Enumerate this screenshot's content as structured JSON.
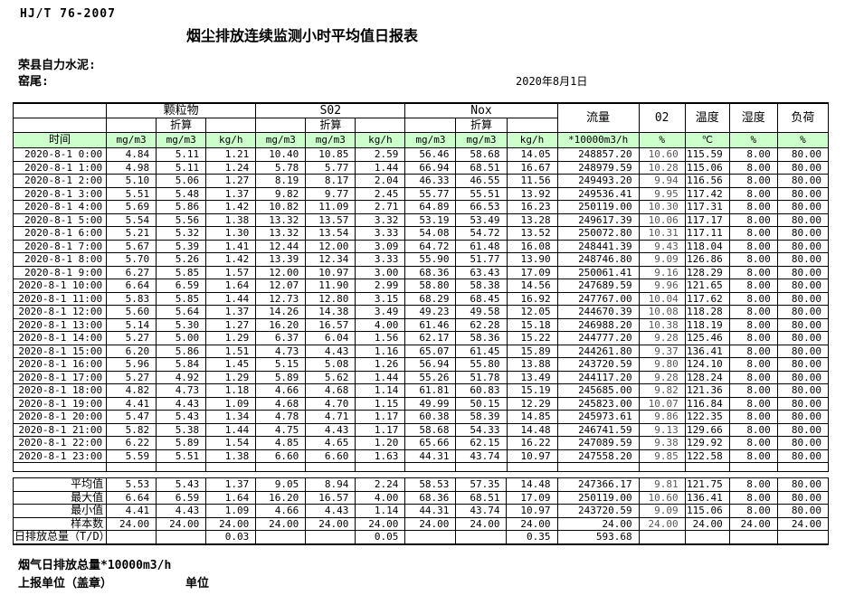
{
  "page": {
    "doc_code": "HJ/T  76-2007",
    "title": "烟尘排放连续监测小时平均值日报表",
    "company": "荣县自力水泥:",
    "station": "窑尾:",
    "date": "2020年8月1日"
  },
  "colors": {
    "header_green": "#ccffcc",
    "border": "#000000"
  },
  "table": {
    "time_header": "时间",
    "zhesuan": "折算",
    "groups": {
      "pm": "颗粒物",
      "so2": "S02",
      "nox": "Nox"
    },
    "single_headers": {
      "flow": "流量",
      "o2": "02",
      "temp": "温度",
      "humidity": "湿度",
      "load": "负荷"
    },
    "units": {
      "mgm3": "mg/m3",
      "kgh": "kg/h",
      "flow": "*10000m3/h",
      "percent": "%",
      "celsius": "℃"
    },
    "column_keys": [
      "pm-mgm3",
      "pm-converted-mgm3",
      "pm-kgh",
      "so2-mgm3",
      "so2-converted-mgm3",
      "so2-kgh",
      "nox-mgm3",
      "nox-converted-mgm3",
      "nox-kgh",
      "flow",
      "o2",
      "temp",
      "humidity",
      "load"
    ],
    "rows": [
      [
        "2020-8-1 0:00",
        "4.84",
        "5.11",
        "1.21",
        "10.40",
        "10.85",
        "2.59",
        "56.46",
        "58.68",
        "14.05",
        "248857.20",
        "10.60",
        "115.59",
        "8.00",
        "80.00"
      ],
      [
        "2020-8-1 1:00",
        "4.98",
        "5.11",
        "1.24",
        "5.78",
        "5.77",
        "1.44",
        "66.94",
        "68.51",
        "16.67",
        "248979.59",
        "10.28",
        "115.06",
        "8.00",
        "80.00"
      ],
      [
        "2020-8-1 2:00",
        "5.10",
        "5.06",
        "1.27",
        "8.19",
        "8.17",
        "2.04",
        "46.33",
        "46.55",
        "11.56",
        "249493.20",
        "9.94",
        "116.56",
        "8.00",
        "80.00"
      ],
      [
        "2020-8-1 3:00",
        "5.51",
        "5.48",
        "1.37",
        "9.82",
        "9.77",
        "2.45",
        "55.77",
        "55.51",
        "13.92",
        "249536.41",
        "9.95",
        "117.42",
        "8.00",
        "80.00"
      ],
      [
        "2020-8-1 4:00",
        "5.69",
        "5.86",
        "1.42",
        "10.82",
        "11.09",
        "2.71",
        "64.89",
        "66.53",
        "16.23",
        "250119.00",
        "10.30",
        "117.31",
        "8.00",
        "80.00"
      ],
      [
        "2020-8-1 5:00",
        "5.54",
        "5.56",
        "1.38",
        "13.32",
        "13.57",
        "3.32",
        "53.19",
        "53.49",
        "13.28",
        "249617.39",
        "10.06",
        "117.17",
        "8.00",
        "80.00"
      ],
      [
        "2020-8-1 6:00",
        "5.21",
        "5.32",
        "1.30",
        "13.32",
        "13.54",
        "3.33",
        "54.08",
        "54.72",
        "13.52",
        "250072.80",
        "10.31",
        "117.11",
        "8.00",
        "80.00"
      ],
      [
        "2020-8-1 7:00",
        "5.67",
        "5.39",
        "1.41",
        "12.44",
        "12.00",
        "3.09",
        "64.72",
        "61.48",
        "16.08",
        "248441.39",
        "9.43",
        "118.04",
        "8.00",
        "80.00"
      ],
      [
        "2020-8-1 8:00",
        "5.70",
        "5.26",
        "1.42",
        "13.39",
        "12.34",
        "3.33",
        "55.90",
        "51.77",
        "13.90",
        "248746.80",
        "9.09",
        "126.86",
        "8.00",
        "80.00"
      ],
      [
        "2020-8-1 9:00",
        "6.27",
        "5.85",
        "1.57",
        "12.00",
        "10.97",
        "3.00",
        "68.36",
        "63.43",
        "17.09",
        "250061.41",
        "9.16",
        "128.29",
        "8.00",
        "80.00"
      ],
      [
        "2020-8-1 10:00",
        "6.64",
        "6.59",
        "1.64",
        "12.07",
        "11.90",
        "2.99",
        "58.80",
        "58.38",
        "14.56",
        "247689.59",
        "9.96",
        "121.65",
        "8.00",
        "80.00"
      ],
      [
        "2020-8-1 11:00",
        "5.83",
        "5.85",
        "1.44",
        "12.73",
        "12.80",
        "3.15",
        "68.29",
        "68.45",
        "16.92",
        "247767.00",
        "10.04",
        "117.62",
        "8.00",
        "80.00"
      ],
      [
        "2020-8-1 12:00",
        "5.60",
        "5.64",
        "1.37",
        "14.26",
        "14.38",
        "3.49",
        "49.23",
        "49.58",
        "12.05",
        "244670.39",
        "10.08",
        "118.28",
        "8.00",
        "80.00"
      ],
      [
        "2020-8-1 13:00",
        "5.14",
        "5.30",
        "1.27",
        "16.20",
        "16.57",
        "4.00",
        "61.46",
        "62.28",
        "15.18",
        "246988.20",
        "10.38",
        "118.19",
        "8.00",
        "80.00"
      ],
      [
        "2020-8-1 14:00",
        "5.27",
        "5.00",
        "1.29",
        "6.37",
        "6.04",
        "1.56",
        "62.17",
        "58.36",
        "15.22",
        "244777.20",
        "9.28",
        "125.46",
        "8.00",
        "80.00"
      ],
      [
        "2020-8-1 15:00",
        "6.20",
        "5.86",
        "1.51",
        "4.73",
        "4.43",
        "1.16",
        "65.07",
        "61.45",
        "15.89",
        "244261.80",
        "9.37",
        "136.41",
        "8.00",
        "80.00"
      ],
      [
        "2020-8-1 16:00",
        "5.96",
        "5.84",
        "1.45",
        "5.15",
        "5.08",
        "1.26",
        "56.94",
        "55.80",
        "13.88",
        "243720.59",
        "9.80",
        "124.10",
        "8.00",
        "80.00"
      ],
      [
        "2020-8-1 17:00",
        "5.27",
        "4.92",
        "1.29",
        "5.89",
        "5.62",
        "1.44",
        "55.26",
        "51.78",
        "13.49",
        "244117.20",
        "9.28",
        "128.24",
        "8.00",
        "80.00"
      ],
      [
        "2020-8-1 18:00",
        "4.82",
        "4.73",
        "1.18",
        "4.66",
        "4.68",
        "1.14",
        "61.81",
        "60.83",
        "15.19",
        "245685.00",
        "9.82",
        "121.36",
        "8.00",
        "80.00"
      ],
      [
        "2020-8-1 19:00",
        "4.41",
        "4.43",
        "1.09",
        "4.68",
        "4.70",
        "1.15",
        "49.99",
        "50.15",
        "12.29",
        "245823.00",
        "10.07",
        "116.84",
        "8.00",
        "80.00"
      ],
      [
        "2020-8-1 20:00",
        "5.47",
        "5.43",
        "1.34",
        "4.78",
        "4.71",
        "1.17",
        "60.38",
        "58.39",
        "14.85",
        "245973.61",
        "9.86",
        "122.35",
        "8.00",
        "80.00"
      ],
      [
        "2020-8-1 21:00",
        "5.82",
        "5.38",
        "1.44",
        "4.75",
        "4.43",
        "1.17",
        "58.68",
        "54.33",
        "14.48",
        "246741.59",
        "9.13",
        "129.66",
        "8.00",
        "80.00"
      ],
      [
        "2020-8-1 22:00",
        "6.22",
        "5.89",
        "1.54",
        "4.85",
        "4.65",
        "1.20",
        "65.66",
        "62.15",
        "16.22",
        "247089.59",
        "9.38",
        "129.92",
        "8.00",
        "80.00"
      ],
      [
        "2020-8-1 23:00",
        "5.59",
        "5.51",
        "1.38",
        "6.60",
        "6.60",
        "1.63",
        "44.31",
        "43.74",
        "10.97",
        "247558.20",
        "9.85",
        "122.58",
        "8.00",
        "80.00"
      ]
    ],
    "summary": [
      {
        "label": "平均值",
        "align": "right",
        "values": [
          "5.53",
          "5.43",
          "1.37",
          "9.05",
          "8.94",
          "2.24",
          "58.53",
          "57.35",
          "14.48",
          "247366.17",
          "9.81",
          "121.75",
          "8.00",
          "80.00"
        ]
      },
      {
        "label": "最大值",
        "align": "right",
        "values": [
          "6.64",
          "6.59",
          "1.64",
          "16.20",
          "16.57",
          "4.00",
          "68.36",
          "68.51",
          "17.09",
          "250119.00",
          "10.60",
          "136.41",
          "8.00",
          "80.00"
        ]
      },
      {
        "label": "最小值",
        "align": "right",
        "values": [
          "4.41",
          "4.43",
          "1.09",
          "4.66",
          "4.43",
          "1.14",
          "44.31",
          "43.74",
          "10.97",
          "243720.59",
          "9.09",
          "115.06",
          "8.00",
          "80.00"
        ]
      },
      {
        "label": "样本数",
        "align": "right",
        "values": [
          "24.00",
          "24.00",
          "24.00",
          "24.00",
          "24.00",
          "24.00",
          "24.00",
          "24.00",
          "24.00",
          "24.00",
          "24.00",
          "24.00",
          "24.00",
          "24.00"
        ]
      },
      {
        "label": "日排放总量（T/D）",
        "align": "left",
        "values": [
          "",
          "",
          "0.03",
          "",
          "",
          "0.05",
          "",
          "",
          "0.35",
          "593.68",
          "",
          "",
          "",
          ""
        ]
      }
    ]
  },
  "footer": {
    "flue_total": "烟气日排放总量*10000m3/h",
    "report_unit": "上报单位（盖章）",
    "unit": "单位"
  }
}
